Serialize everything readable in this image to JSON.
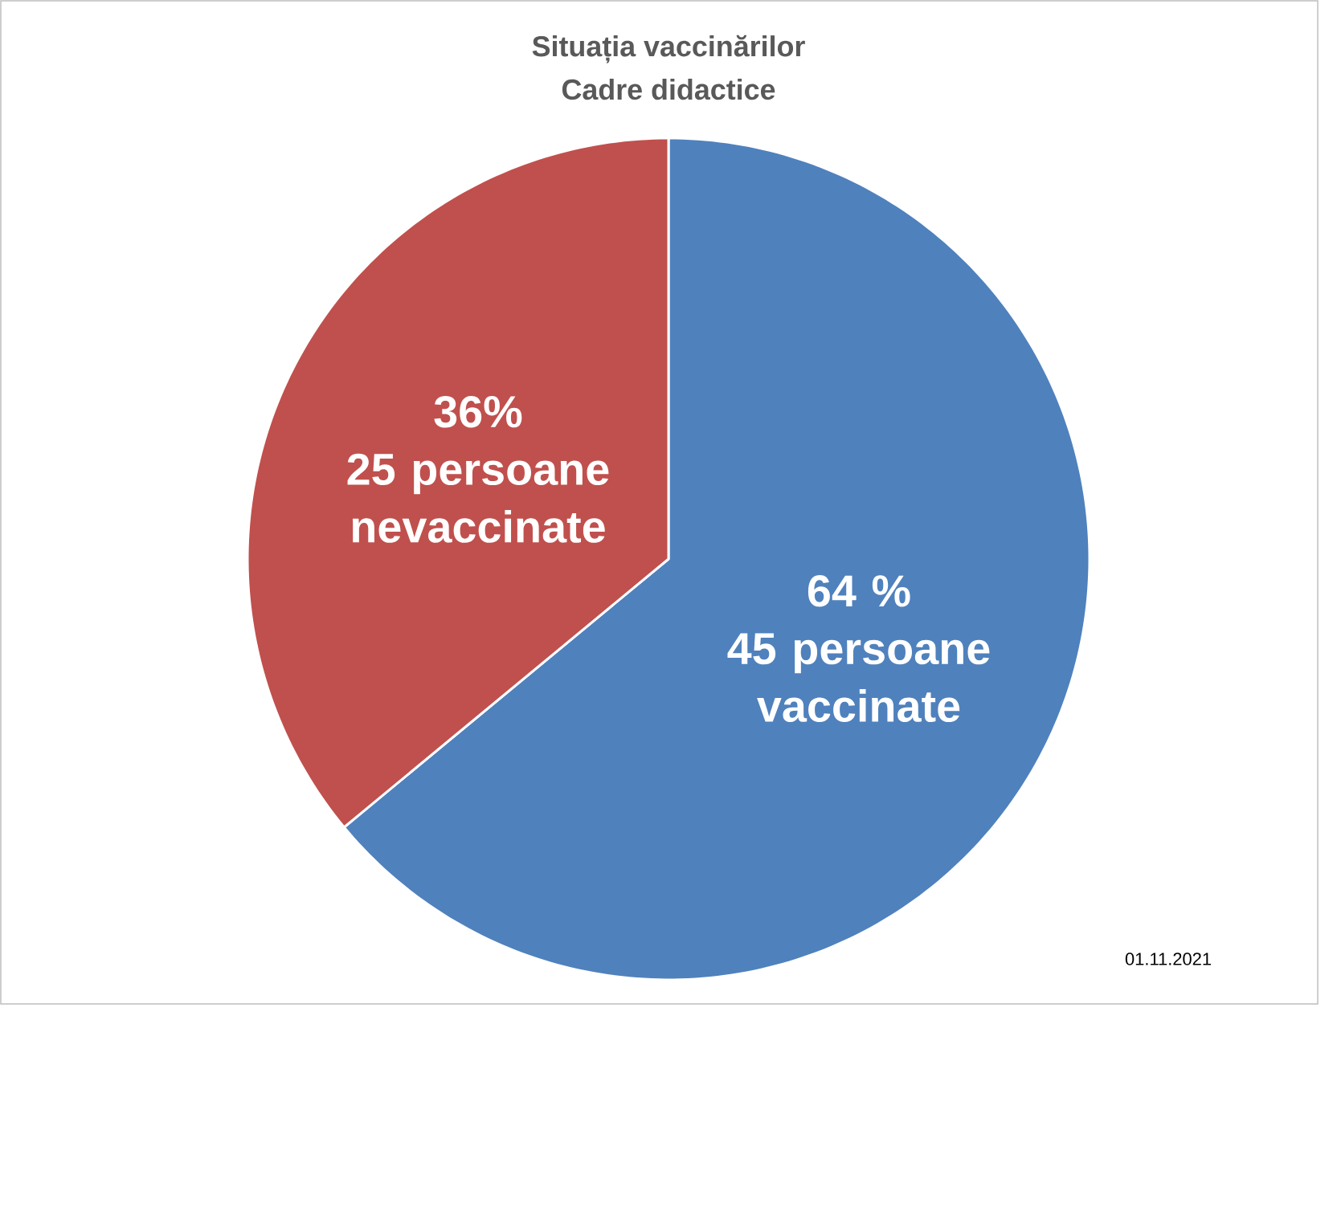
{
  "chart_data": {
    "type": "pie",
    "title": "Situația vaccinărilor",
    "subtitle": "Cadre didactice",
    "categories": [
      "45 persoane vaccinate",
      "25 persoane nevaccinate"
    ],
    "values": [
      64,
      36
    ],
    "value_labels": [
      "64 %",
      "36%"
    ],
    "colors": [
      "#4f81bd",
      "#c0504d"
    ],
    "annotations": [
      "01.11.2021"
    ]
  }
}
